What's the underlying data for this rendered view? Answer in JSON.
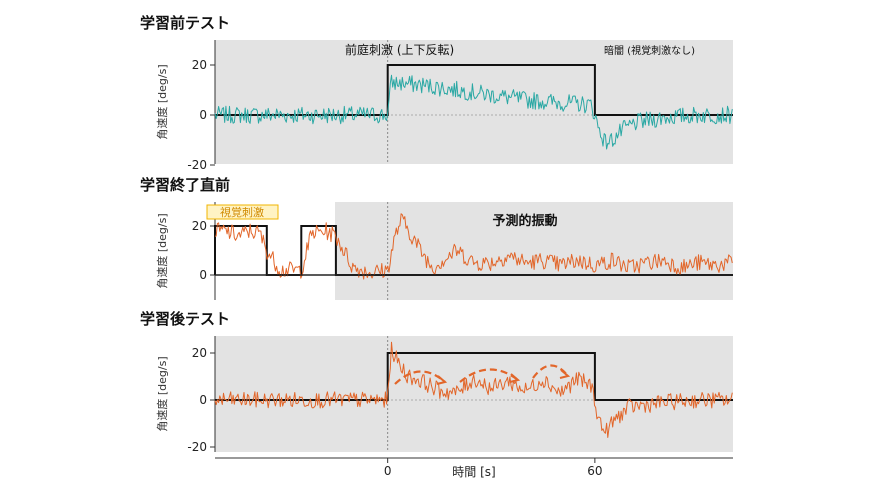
{
  "chart_data": [
    {
      "type": "line",
      "title": "学習前テスト",
      "ylabel": "角速度 [deg/s]",
      "ylim": [
        -20,
        20
      ],
      "xlim": [
        -50,
        100
      ],
      "yticks": [
        "20",
        "0",
        "-20"
      ],
      "grid": false,
      "colors": {
        "signal": "#2aa8a4",
        "stimulus": "#111111",
        "background": "#e3e3e3"
      },
      "annotations": [
        "前庭刺激 (上下反転)",
        "暗闇 (視覚刺激なし)"
      ],
      "series": [
        {
          "kind": "stimulus",
          "x": [
            -50,
            0,
            0,
            60,
            60,
            100
          ],
          "y": [
            0,
            0,
            20,
            20,
            0,
            0
          ]
        },
        {
          "kind": "measured",
          "x": [
            -50,
            -30,
            -10,
            0,
            1,
            10,
            20,
            30,
            40,
            50,
            59,
            60,
            61,
            63,
            65,
            68,
            72,
            80,
            90,
            100
          ],
          "y": [
            0,
            0,
            0,
            0,
            13,
            12,
            10,
            8,
            6,
            5,
            4,
            0,
            -5,
            -11,
            -10,
            -6,
            -3,
            -1,
            0,
            0
          ]
        }
      ]
    },
    {
      "type": "line",
      "title": "学習終了直前",
      "ylabel": "角速度 [deg/s]",
      "ylim": [
        -20,
        25
      ],
      "xlim": [
        -50,
        100
      ],
      "yticks": [
        "20",
        "0"
      ],
      "grid": false,
      "colors": {
        "signal": "#e2662a",
        "stimulus": "#111111",
        "background": "#e3e3e3",
        "visual": "#f2b400"
      },
      "annotations": [
        "予測的振動",
        "視覚刺激"
      ],
      "series": [
        {
          "kind": "stimulus",
          "x": [
            -50,
            -50,
            -45,
            -45,
            -35,
            -35,
            -30,
            -30,
            -25,
            -25,
            -15,
            -15,
            -10,
            -10,
            100
          ],
          "y": [
            0,
            20,
            20,
            20,
            20,
            0,
            0,
            0,
            0,
            20,
            20,
            0,
            0,
            0,
            0
          ]
        },
        {
          "kind": "measured",
          "x": [
            -50,
            -47,
            -43,
            -40,
            -37,
            -35,
            -31,
            -27,
            -25,
            -22,
            -18,
            -15,
            -10,
            -5,
            0,
            2,
            4,
            7,
            10,
            13,
            17,
            20,
            25,
            30,
            35,
            40,
            45,
            50,
            55,
            60,
            65,
            70,
            75,
            80,
            85,
            90,
            95,
            100
          ],
          "y": [
            18,
            18,
            16,
            18,
            17,
            10,
            2,
            2,
            2,
            17,
            18,
            16,
            3,
            1,
            2,
            15,
            23,
            16,
            9,
            3,
            7,
            10,
            5,
            5,
            8,
            5,
            6,
            4,
            6,
            4,
            6,
            3,
            5,
            6,
            3,
            5,
            4,
            5
          ]
        }
      ]
    },
    {
      "type": "line",
      "title": "学習後テスト",
      "ylabel": "角速度 [deg/s]",
      "xlabel": "時間 [s]",
      "ylim": [
        -20,
        25
      ],
      "xlim": [
        -50,
        100
      ],
      "yticks": [
        "20",
        "0",
        "-20"
      ],
      "xticks": [
        "0",
        "60"
      ],
      "grid": false,
      "colors": {
        "signal": "#e2662a",
        "stimulus": "#111111",
        "background": "#e3e3e3"
      },
      "series": [
        {
          "kind": "stimulus",
          "x": [
            -50,
            0,
            0,
            60,
            60,
            100
          ],
          "y": [
            0,
            0,
            20,
            20,
            0,
            0
          ]
        },
        {
          "kind": "measured",
          "x": [
            -50,
            -30,
            -10,
            0,
            1,
            3,
            6,
            10,
            15,
            20,
            25,
            30,
            35,
            40,
            45,
            50,
            55,
            59,
            60,
            61,
            63,
            66,
            70,
            80,
            90,
            100
          ],
          "y": [
            0,
            0,
            0,
            0,
            22,
            16,
            10,
            8,
            4,
            3,
            9,
            5,
            8,
            4,
            9,
            3,
            9,
            6,
            0,
            -8,
            -14,
            -8,
            -3,
            -1,
            0,
            0
          ]
        }
      ]
    }
  ]
}
